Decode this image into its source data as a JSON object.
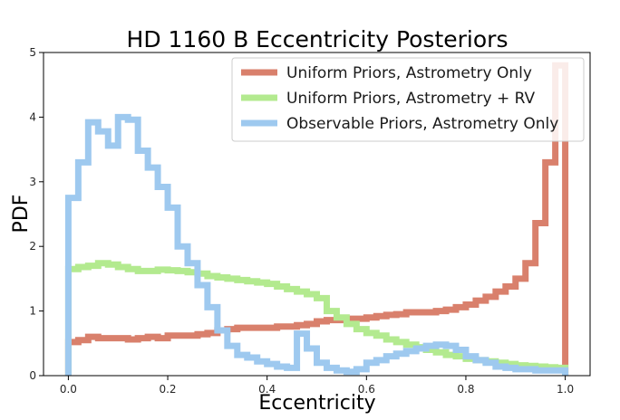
{
  "chart_data": {
    "type": "histogram-step",
    "title": "HD 1160 B Eccentricity Posteriors",
    "xlabel": "Eccentricity",
    "ylabel": "PDF",
    "xlim": [
      -0.05,
      1.05
    ],
    "ylim": [
      0,
      5
    ],
    "xticks": [
      0.0,
      0.2,
      0.4,
      0.6,
      0.8,
      1.0
    ],
    "xtick_labels": [
      "0.0",
      "0.2",
      "0.4",
      "0.6",
      "0.8",
      "1.0"
    ],
    "yticks": [
      0,
      1,
      2,
      3,
      4,
      5
    ],
    "ytick_labels": [
      "0",
      "1",
      "2",
      "3",
      "4",
      "5"
    ],
    "grid": false,
    "legend_position": "top-right",
    "bin_edges": [
      0.0,
      0.02,
      0.04,
      0.06,
      0.08,
      0.1,
      0.12,
      0.14,
      0.16,
      0.18,
      0.2,
      0.22,
      0.24,
      0.26,
      0.28,
      0.3,
      0.32,
      0.34,
      0.36,
      0.38,
      0.4,
      0.42,
      0.44,
      0.46,
      0.48,
      0.5,
      0.52,
      0.54,
      0.56,
      0.58,
      0.6,
      0.62,
      0.64,
      0.66,
      0.68,
      0.7,
      0.72,
      0.74,
      0.76,
      0.78,
      0.8,
      0.82,
      0.84,
      0.86,
      0.88,
      0.9,
      0.92,
      0.94,
      0.96,
      0.98,
      1.0
    ],
    "series": [
      {
        "name": "Uniform Priors, Astrometry Only",
        "color": "#d9806c",
        "values": [
          0.52,
          0.55,
          0.6,
          0.58,
          0.58,
          0.58,
          0.56,
          0.58,
          0.6,
          0.58,
          0.62,
          0.62,
          0.62,
          0.64,
          0.66,
          0.7,
          0.72,
          0.74,
          0.74,
          0.74,
          0.74,
          0.76,
          0.76,
          0.78,
          0.8,
          0.84,
          0.86,
          0.86,
          0.88,
          0.88,
          0.9,
          0.92,
          0.94,
          0.95,
          0.98,
          0.98,
          0.98,
          1.0,
          1.02,
          1.06,
          1.1,
          1.16,
          1.22,
          1.3,
          1.38,
          1.5,
          1.74,
          2.36,
          3.3,
          4.8
        ]
      },
      {
        "name": "Uniform Priors, Astrometry + RV",
        "color": "#b3ea8f",
        "values": [
          1.65,
          1.68,
          1.7,
          1.74,
          1.72,
          1.68,
          1.65,
          1.62,
          1.62,
          1.64,
          1.63,
          1.62,
          1.6,
          1.58,
          1.54,
          1.52,
          1.5,
          1.48,
          1.46,
          1.44,
          1.42,
          1.38,
          1.34,
          1.3,
          1.26,
          1.2,
          1.0,
          0.9,
          0.8,
          0.72,
          0.66,
          0.62,
          0.56,
          0.52,
          0.48,
          0.44,
          0.4,
          0.36,
          0.32,
          0.3,
          0.26,
          0.24,
          0.22,
          0.2,
          0.18,
          0.16,
          0.15,
          0.14,
          0.13,
          0.12
        ]
      },
      {
        "name": "Observable Priors, Astrometry Only",
        "color": "#9ec9ef",
        "values": [
          2.75,
          3.3,
          3.92,
          3.78,
          3.56,
          4.0,
          3.96,
          3.48,
          3.22,
          2.92,
          2.6,
          2.0,
          1.74,
          1.4,
          1.06,
          0.7,
          0.46,
          0.32,
          0.28,
          0.22,
          0.18,
          0.14,
          0.12,
          0.65,
          0.42,
          0.2,
          0.12,
          0.08,
          0.06,
          0.1,
          0.2,
          0.24,
          0.3,
          0.34,
          0.38,
          0.42,
          0.46,
          0.48,
          0.46,
          0.4,
          0.3,
          0.24,
          0.2,
          0.14,
          0.12,
          0.1,
          0.1,
          0.08,
          0.08,
          0.08
        ]
      }
    ]
  }
}
